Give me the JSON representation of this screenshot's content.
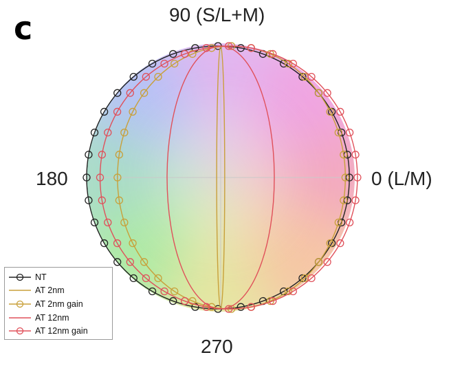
{
  "panel_label": "c",
  "chart_data": {
    "type": "line",
    "coordinate_system": "polar (DKL color space)",
    "angle_labels": {
      "top": "90 (S/L+M)",
      "left": "180",
      "right": "0 (L/M)",
      "bottom": "270"
    },
    "background": "hue disk",
    "grid": "crosshair at 0/90/180/270",
    "legend_position": "bottom-left",
    "series": [
      {
        "name": "NT",
        "color": "#222222",
        "marker": "circle",
        "shape": "ellipse",
        "rx": 0.98,
        "ry": 0.98,
        "cx": -0.02,
        "cy": 0.0
      },
      {
        "name": "AT 2nm",
        "color": "#c8a03a",
        "marker": "none",
        "shape": "ellipse",
        "rx": 0.03,
        "ry": 0.98,
        "cx": 0.0,
        "cy": 0.0
      },
      {
        "name": "AT 2nm gain",
        "color": "#c8a03a",
        "marker": "circle",
        "shape": "ellipse",
        "rx": 0.85,
        "ry": 0.98,
        "cx": 0.08,
        "cy": 0.0
      },
      {
        "name": "AT 12nm",
        "color": "#e0505a",
        "marker": "none",
        "shape": "ellipse",
        "rx": 0.4,
        "ry": 0.98,
        "cx": 0.0,
        "cy": 0.0
      },
      {
        "name": "AT 12nm gain",
        "color": "#e0505a",
        "marker": "circle",
        "shape": "ellipse",
        "rx": 0.96,
        "ry": 0.98,
        "cx": 0.06,
        "cy": 0.0
      }
    ]
  }
}
